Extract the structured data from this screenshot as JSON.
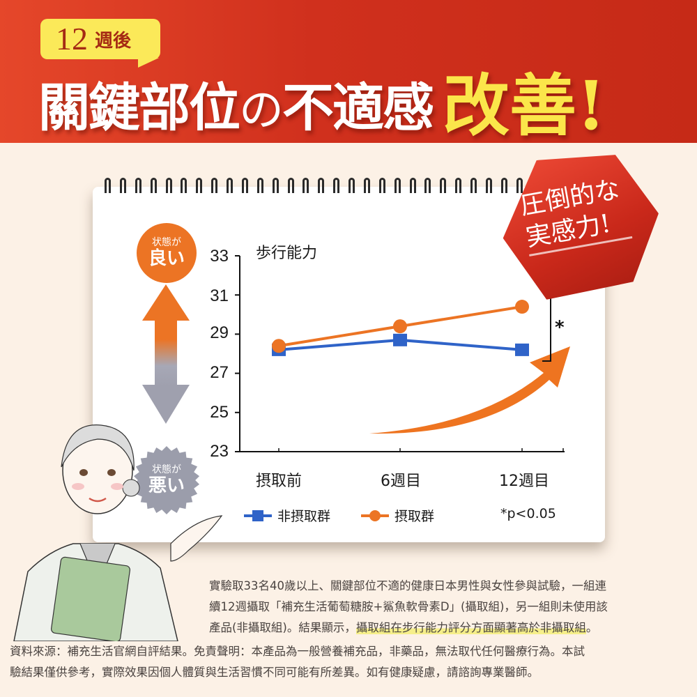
{
  "header": {
    "badge_number": "12",
    "badge_text": "週後",
    "headline_part1": "關鍵部位",
    "headline_no": "の",
    "headline_part2": "不適感",
    "headline_accent": "改善!"
  },
  "hex_badge": {
    "line1": "圧倒的な",
    "line2": "実感力!"
  },
  "indicator": {
    "good_small": "状態が",
    "good_big": "良い",
    "bad_small": "状態が",
    "bad_big": "悪い"
  },
  "colors": {
    "banner_red": "#c62a17",
    "badge_yellow": "#fbe959",
    "accent_yellow": "#fbe64a",
    "orange": "#ec7424",
    "blue": "#2f63c8",
    "gray": "#9b9dab",
    "background": "#fcf1e6"
  },
  "chart_data": {
    "type": "line",
    "title": "歩行能力",
    "xlabel": "",
    "ylabel": "",
    "categories": [
      "摂取前",
      "6週目",
      "12週目"
    ],
    "series": [
      {
        "name": "非摂取群",
        "marker": "square",
        "color": "#2f63c8",
        "values": [
          28.2,
          28.7,
          28.2
        ]
      },
      {
        "name": "摂取群",
        "marker": "circle",
        "color": "#ec7424",
        "values": [
          28.4,
          29.4,
          30.4
        ]
      }
    ],
    "yticks": [
      23,
      25,
      27,
      29,
      31,
      33
    ],
    "ylim": [
      23,
      33
    ],
    "grid": false,
    "legend_position": "bottom",
    "annotations": [
      "*",
      "*p<0.05"
    ]
  },
  "chart_labels": {
    "title": "歩行能力",
    "yticks": [
      "33",
      "31",
      "29",
      "27",
      "25",
      "23"
    ],
    "x": [
      "摂取前",
      "6週目",
      "12週目"
    ],
    "legend_series1": "非摂取群",
    "legend_series2": "摂取群",
    "significance_mark": "*",
    "significance_note": "*p<0.05"
  },
  "description": {
    "line1": "實驗取33名40歲以上、關鍵部位不適的健康日本男性與女性參與試驗，一組連",
    "line2": "續12週攝取「補充生活葡萄糖胺+鯊魚軟骨素D」(攝取組)，另一組則未使用該",
    "line3_plain": "產品(非攝取組)。結果顯示，",
    "line3_highlight": "攝取組在步行能力評分方面顯著高於非攝取組",
    "line3_end": "。"
  },
  "disclaimer": {
    "line1": "資料來源：補充生活官網自評結果。免責聲明：本產品為一般營養補充品，非藥品，無法取代任何醫療行為。本試",
    "line2": "驗結果僅供參考，實際效果因個人體質與生活習慣不同可能有所差異。如有健康疑慮，請諮詢專業醫師。"
  }
}
